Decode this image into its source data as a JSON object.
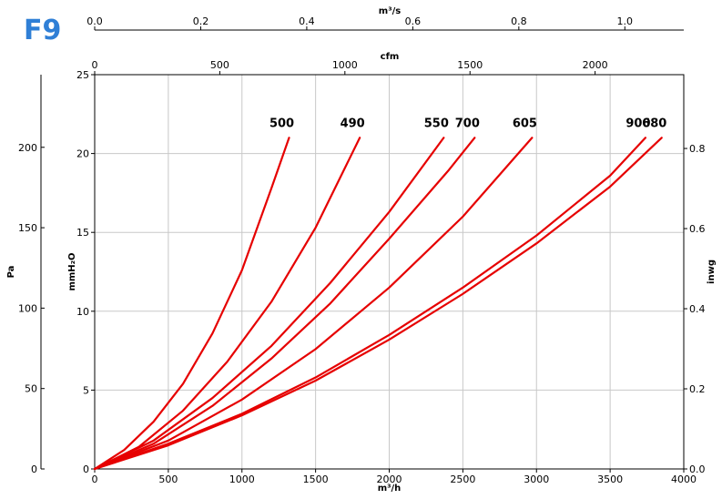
{
  "badge": "F9",
  "colors": {
    "badge": "#2f7fd6",
    "curve": "#e60000",
    "grid": "#c8c8c8",
    "axis": "#000000"
  },
  "chart_data": {
    "type": "line",
    "title": "",
    "grid": true,
    "xlabel": "m³/h",
    "ylabel": "mmH₂O",
    "xlim": [
      0,
      4000
    ],
    "ylim": [
      0,
      25
    ],
    "x_ticks": [
      0,
      500,
      1000,
      1500,
      2000,
      2500,
      3000,
      3500,
      4000
    ],
    "y_ticks": [
      0,
      5,
      10,
      15,
      20,
      25
    ],
    "secondary_axes": {
      "left_pa": {
        "label": "Pa",
        "ticks": [
          0,
          50,
          100,
          150,
          200
        ]
      },
      "right_inwg": {
        "label": "inwg",
        "ticks": [
          "0.0",
          "0.2",
          "0.4",
          "0.6",
          "0.8"
        ]
      },
      "top_cfm": {
        "label": "cfm",
        "ticks": [
          0,
          500,
          1000,
          1500,
          2000
        ]
      },
      "top_m3s": {
        "label": "m³/s",
        "ticks": [
          "0.0",
          "0.2",
          "0.4",
          "0.6",
          "0.8",
          "1.0"
        ]
      }
    },
    "series": [
      {
        "name": "500",
        "points": [
          [
            0,
            0
          ],
          [
            200,
            1.2
          ],
          [
            400,
            3
          ],
          [
            600,
            5.4
          ],
          [
            800,
            8.6
          ],
          [
            1000,
            12.6
          ],
          [
            1200,
            17.8
          ],
          [
            1320,
            21
          ]
        ]
      },
      {
        "name": "490",
        "points": [
          [
            0,
            0
          ],
          [
            300,
            1.4
          ],
          [
            600,
            3.7
          ],
          [
            900,
            6.8
          ],
          [
            1200,
            10.6
          ],
          [
            1500,
            15.3
          ],
          [
            1800,
            21
          ]
        ]
      },
      {
        "name": "550",
        "points": [
          [
            0,
            0
          ],
          [
            400,
            1.8
          ],
          [
            800,
            4.5
          ],
          [
            1200,
            7.8
          ],
          [
            1600,
            11.8
          ],
          [
            2000,
            16.3
          ],
          [
            2370,
            21
          ]
        ]
      },
      {
        "name": "700",
        "points": [
          [
            0,
            0
          ],
          [
            400,
            1.6
          ],
          [
            800,
            4.0
          ],
          [
            1200,
            7.0
          ],
          [
            1600,
            10.5
          ],
          [
            2000,
            14.6
          ],
          [
            2400,
            18.9
          ],
          [
            2580,
            21
          ]
        ]
      },
      {
        "name": "605",
        "points": [
          [
            0,
            0
          ],
          [
            500,
            1.8
          ],
          [
            1000,
            4.4
          ],
          [
            1500,
            7.6
          ],
          [
            2000,
            11.5
          ],
          [
            2500,
            16
          ],
          [
            2970,
            21
          ]
        ]
      },
      {
        "name": "900",
        "points": [
          [
            0,
            0
          ],
          [
            500,
            1.6
          ],
          [
            1000,
            3.5
          ],
          [
            1500,
            5.8
          ],
          [
            2000,
            8.5
          ],
          [
            2500,
            11.5
          ],
          [
            3000,
            14.8
          ],
          [
            3500,
            18.6
          ],
          [
            3740,
            21
          ]
        ]
      },
      {
        "name": "680",
        "points": [
          [
            0,
            0
          ],
          [
            500,
            1.5
          ],
          [
            1000,
            3.4
          ],
          [
            1500,
            5.6
          ],
          [
            2000,
            8.2
          ],
          [
            2500,
            11.1
          ],
          [
            3000,
            14.3
          ],
          [
            3500,
            17.9
          ],
          [
            3850,
            21
          ]
        ]
      }
    ]
  }
}
